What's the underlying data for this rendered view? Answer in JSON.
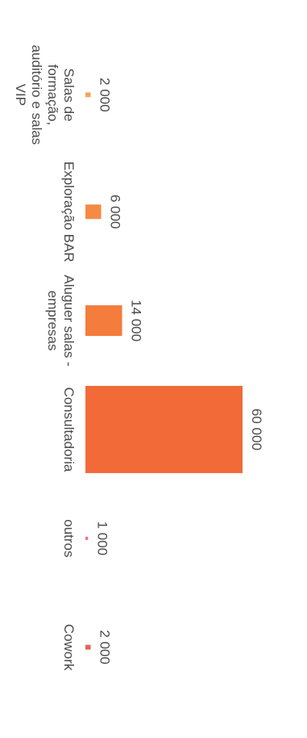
{
  "chart_data": {
    "type": "bar",
    "orientation": "rotated 90° (vertical bars drawn sideways)",
    "categories": [
      [
        "Salas de",
        "formação,",
        "auditório e salas",
        "VIP"
      ],
      [
        "Exploração BAR"
      ],
      [
        "Aluguer salas -",
        "empresas"
      ],
      [
        "Consultadoria"
      ],
      [
        "outros"
      ],
      [
        "Cowork"
      ]
    ],
    "values": [
      2000,
      6000,
      14000,
      60000,
      1000,
      2000
    ],
    "data_labels": [
      "2 000",
      "6 000",
      "14 000",
      "60 000",
      "1 000",
      "2 000"
    ],
    "colors": [
      "#f7a35c",
      "#f58a45",
      "#f47c3c",
      "#f26a38",
      "#e8707d",
      "#e8605a"
    ],
    "title": "",
    "xlabel": "",
    "ylabel": "",
    "ylim": [
      0,
      60000
    ],
    "grid": false,
    "legend": "none"
  }
}
